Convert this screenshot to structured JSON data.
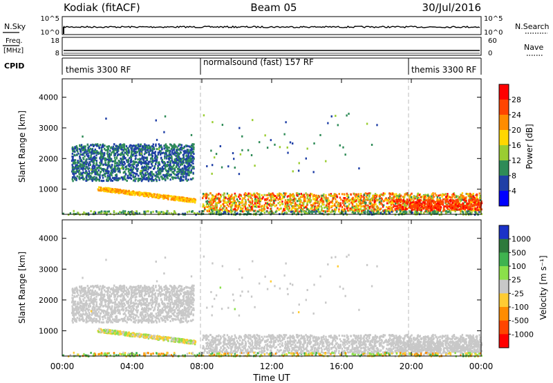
{
  "header": {
    "station": "Kodiak (fitACF)",
    "beam": "Beam 05",
    "date": "30/Jul/2016"
  },
  "noise_panel": {
    "left_label": "N.Sky",
    "right_label": "N.Search",
    "left_ticks": [
      "10^5",
      "10^0"
    ],
    "right_ticks": [
      "10^5",
      "10^0"
    ],
    "right_legend_line": "dotted"
  },
  "freq_panel": {
    "left_label_1": "Freq.",
    "left_label_2": "[MHz]",
    "right_label": "Nave",
    "left_ticks": [
      "18",
      "8"
    ],
    "right_ticks": [
      "60",
      "0"
    ],
    "right_legend_line": "dotted"
  },
  "cpid_panel": {
    "label": "CPID",
    "segments": [
      {
        "name": "themis 3300 RF",
        "start_h": 0,
        "end_h": 8
      },
      {
        "name": "normalsound (fast) 157 RF",
        "start_h": 8,
        "end_h": 20
      },
      {
        "name": "themis 3300 RF",
        "start_h": 20,
        "end_h": 24
      }
    ]
  },
  "power_panel": {
    "ylabel": "Slant Range [km]",
    "yticks": [
      "1000",
      "2000",
      "3000",
      "4000"
    ],
    "colorbar_label": "Power [dB]",
    "colorbar_ticks": [
      "4",
      "8",
      "12",
      "16",
      "20",
      "24",
      "28"
    ],
    "colors": [
      "#0000ff",
      "#1f3fa6",
      "#2e8b57",
      "#9acd32",
      "#ffd700",
      "#ff8c00",
      "#ff4500",
      "#ff0000"
    ]
  },
  "velocity_panel": {
    "ylabel": "Slant Range [km]",
    "yticks": [
      "1000",
      "2000",
      "3000",
      "4000"
    ],
    "colorbar_label": "Velocity [m s⁻¹]",
    "colorbar_ticks": [
      "1000",
      "500",
      "100",
      "25",
      "-25",
      "-100",
      "-500",
      "-1000"
    ],
    "colors": [
      "#1a32c8",
      "#2e7a3c",
      "#3fb34f",
      "#8be04a",
      "#c8c8c8",
      "#ffcc33",
      "#ff8c00",
      "#ff4500",
      "#ff0000"
    ]
  },
  "x_axis": {
    "label": "Time UT",
    "ticks": [
      "00:00",
      "04:00",
      "08:00",
      "12:00",
      "16:00",
      "20:00",
      "00:00"
    ]
  },
  "chart_data": {
    "type": "heatmap",
    "title": "Kodiak (fitACF)  Beam 05  30/Jul/2016",
    "xlabel": "Time UT",
    "ylabel": "Slant Range [km]",
    "xlim_hours": [
      0,
      24
    ],
    "ylim_km": [
      180,
      4600
    ],
    "grid": false,
    "colorbar_power_db": [
      4,
      8,
      12,
      16,
      20,
      24,
      28
    ],
    "colorbar_velocity_ms": [
      1000,
      500,
      100,
      25,
      -25,
      -100,
      -500,
      -1000
    ],
    "scatter_regions": [
      {
        "name": "near-range band",
        "t_start": 8,
        "t_end": 24,
        "range_km": [
          300,
          900
        ],
        "power_db": [
          10,
          30
        ],
        "velocity_ms": [
          -25,
          25
        ]
      },
      {
        "name": "descending echo",
        "t_start": 2,
        "t_end": 7.6,
        "range_km": [
          650,
          1050
        ],
        "power_db": [
          16,
          24
        ],
        "velocity_ms": [
          -100,
          100
        ]
      },
      {
        "name": "mid-range patches",
        "t_start": 0.5,
        "t_end": 7.5,
        "range_km": [
          1300,
          2500
        ],
        "power_db": [
          4,
          12
        ],
        "velocity_ms": [
          -25,
          25
        ]
      },
      {
        "name": "evening enhancement",
        "t_start": 19,
        "t_end": 24,
        "range_km": [
          350,
          700
        ],
        "power_db": [
          24,
          30
        ],
        "velocity_ms": [
          -25,
          25
        ]
      }
    ]
  }
}
